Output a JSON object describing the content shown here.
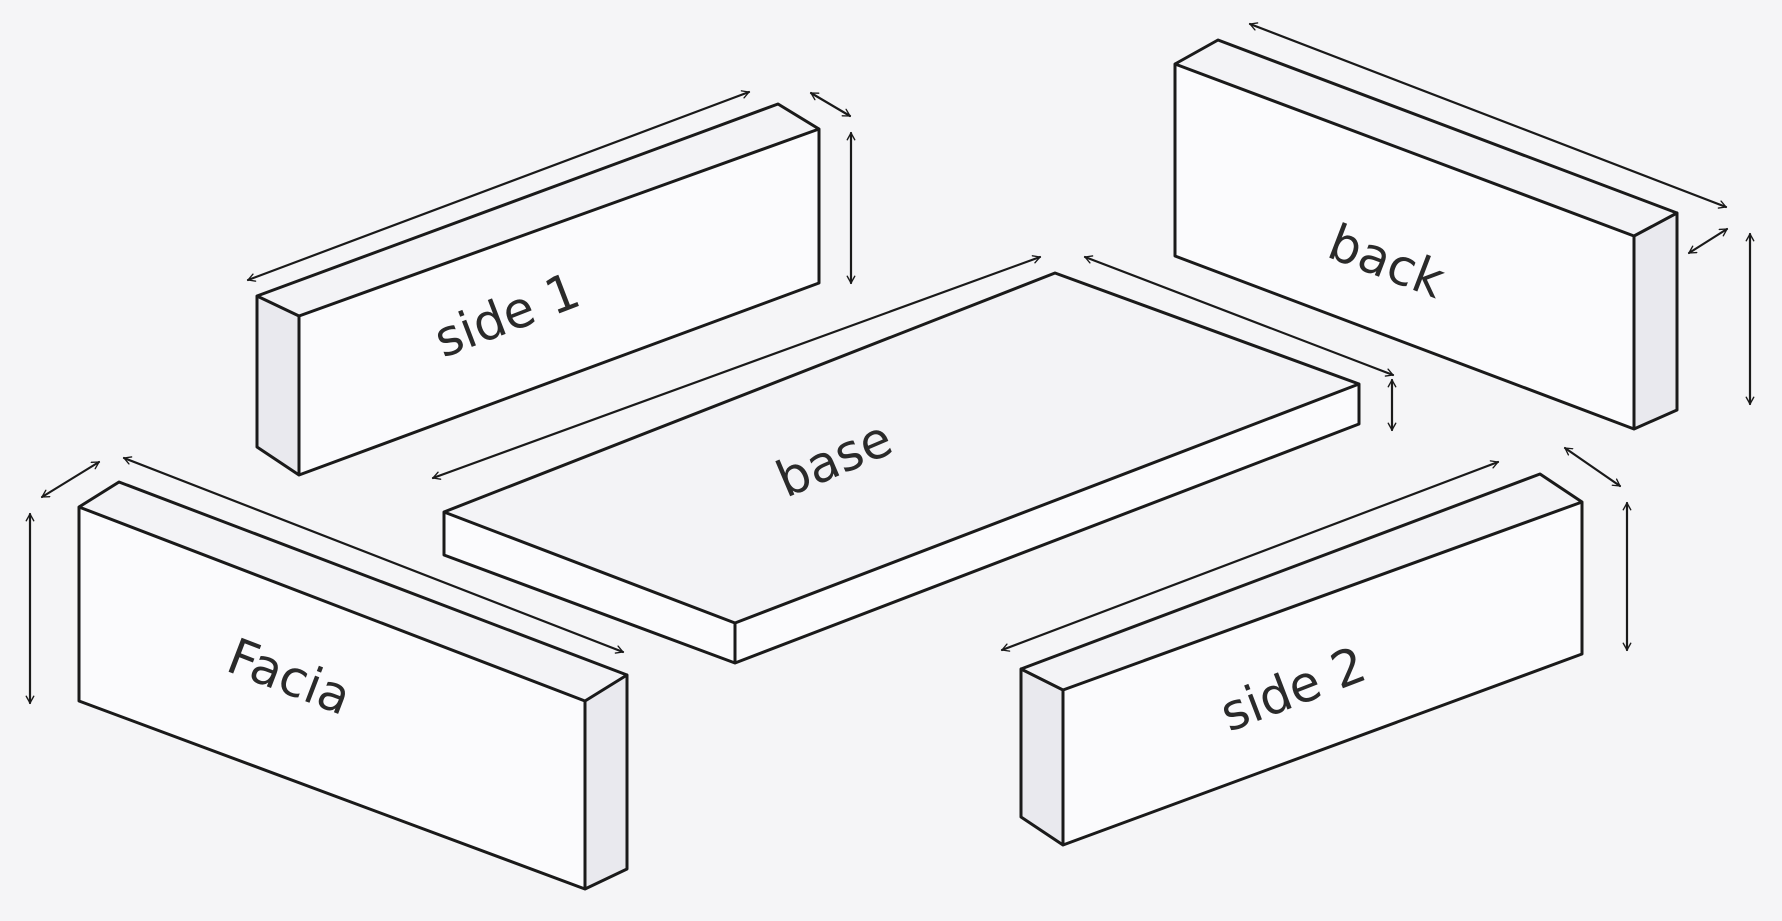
{
  "parts": {
    "side1": {
      "label": "side 1"
    },
    "back": {
      "label": "back"
    },
    "base": {
      "label": "base"
    },
    "facia": {
      "label": "Facia"
    },
    "side2": {
      "label": "side 2"
    }
  }
}
